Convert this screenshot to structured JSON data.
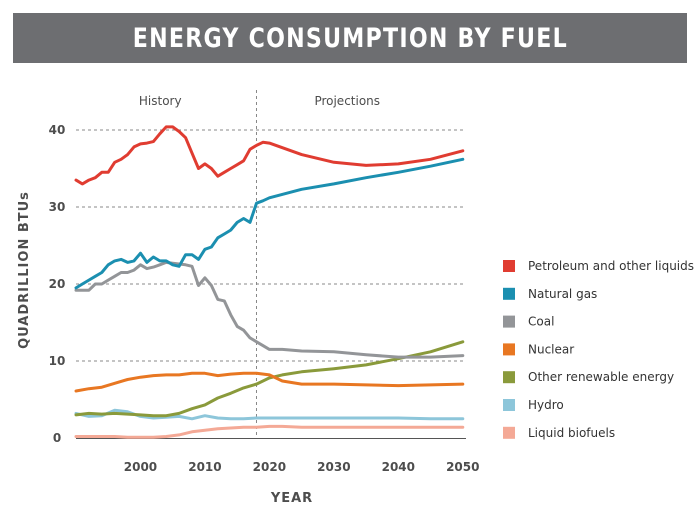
{
  "banner": {
    "title": "ENERGY CONSUMPTION BY FUEL"
  },
  "chart_data": {
    "type": "line",
    "xlabel": "YEAR",
    "ylabel": "QUADRILLION BTUs",
    "xlim": [
      1990,
      2050
    ],
    "ylim": [
      0,
      40
    ],
    "x_ticks": [
      2000,
      2010,
      2020,
      2030,
      2040,
      2050
    ],
    "y_ticks": [
      0,
      10,
      20,
      30,
      40
    ],
    "grid": "horizontal dashed",
    "divider_year": 2018,
    "regions": [
      "History",
      "Projections"
    ],
    "legend_position": "right",
    "series": [
      {
        "name": "Petroleum and other liquids",
        "color": "#e03c31",
        "x": [
          1990,
          1991,
          1992,
          1993,
          1994,
          1995,
          1996,
          1997,
          1998,
          1999,
          2000,
          2001,
          2002,
          2003,
          2004,
          2005,
          2006,
          2007,
          2008,
          2009,
          2010,
          2011,
          2012,
          2013,
          2014,
          2015,
          2016,
          2017,
          2018,
          2019,
          2020,
          2025,
          2030,
          2035,
          2040,
          2045,
          2050
        ],
        "y": [
          33.5,
          33,
          33.5,
          33.8,
          34.5,
          34.5,
          35.8,
          36.2,
          36.8,
          37.8,
          38.2,
          38.3,
          38.5,
          39.5,
          40.4,
          40.4,
          39.8,
          39,
          37,
          35,
          35.6,
          35,
          34,
          34.5,
          35,
          35.5,
          36,
          37.5,
          38,
          38.4,
          38.3,
          36.8,
          35.8,
          35.4,
          35.6,
          36.2,
          37.3
        ]
      },
      {
        "name": "Natural gas",
        "color": "#1b8fb0",
        "x": [
          1990,
          1991,
          1992,
          1993,
          1994,
          1995,
          1996,
          1997,
          1998,
          1999,
          2000,
          2001,
          2002,
          2003,
          2004,
          2005,
          2006,
          2007,
          2008,
          2009,
          2010,
          2011,
          2012,
          2013,
          2014,
          2015,
          2016,
          2017,
          2018,
          2019,
          2020,
          2025,
          2030,
          2035,
          2040,
          2045,
          2050
        ],
        "y": [
          19.5,
          20,
          20.5,
          21,
          21.5,
          22.5,
          23,
          23.2,
          22.8,
          23,
          24,
          22.8,
          23.5,
          23,
          23,
          22.5,
          22.3,
          23.8,
          23.8,
          23.2,
          24.5,
          24.8,
          26,
          26.5,
          27,
          28,
          28.5,
          28,
          30.5,
          30.8,
          31.2,
          32.3,
          33,
          33.8,
          34.5,
          35.3,
          36.2
        ]
      },
      {
        "name": "Coal",
        "color": "#939598",
        "x": [
          1990,
          1991,
          1992,
          1993,
          1994,
          1995,
          1996,
          1997,
          1998,
          1999,
          2000,
          2001,
          2002,
          2003,
          2004,
          2005,
          2006,
          2007,
          2008,
          2009,
          2010,
          2011,
          2012,
          2013,
          2014,
          2015,
          2016,
          2017,
          2018,
          2019,
          2020,
          2022,
          2025,
          2030,
          2035,
          2040,
          2045,
          2050
        ],
        "y": [
          19.2,
          19.2,
          19.2,
          20,
          20,
          20.5,
          21,
          21.5,
          21.5,
          21.8,
          22.5,
          22,
          22.2,
          22.5,
          22.8,
          22.7,
          22.6,
          22.5,
          22.3,
          19.8,
          20.8,
          19.8,
          18,
          17.8,
          16,
          14.5,
          14,
          13,
          12.5,
          12,
          11.5,
          11.5,
          11.3,
          11.2,
          10.8,
          10.5,
          10.5,
          10.7
        ]
      },
      {
        "name": "Nuclear",
        "color": "#e87722",
        "x": [
          1990,
          1992,
          1994,
          1996,
          1998,
          2000,
          2002,
          2004,
          2006,
          2008,
          2010,
          2012,
          2014,
          2016,
          2018,
          2020,
          2022,
          2025,
          2030,
          2035,
          2040,
          2045,
          2050
        ],
        "y": [
          6.1,
          6.4,
          6.6,
          7.1,
          7.6,
          7.9,
          8.1,
          8.2,
          8.2,
          8.4,
          8.4,
          8.1,
          8.3,
          8.4,
          8.4,
          8.2,
          7.4,
          7,
          7,
          6.9,
          6.8,
          6.9,
          7
        ]
      },
      {
        "name": "Other renewable energy",
        "color": "#8a9a3b",
        "x": [
          1990,
          1992,
          1994,
          1996,
          1998,
          2000,
          2002,
          2004,
          2006,
          2008,
          2010,
          2012,
          2014,
          2016,
          2018,
          2020,
          2022,
          2025,
          2030,
          2035,
          2040,
          2045,
          2050
        ],
        "y": [
          3,
          3.2,
          3.1,
          3.2,
          3.1,
          3,
          2.9,
          2.9,
          3.2,
          3.8,
          4.3,
          5.2,
          5.8,
          6.5,
          7,
          7.8,
          8.2,
          8.6,
          9,
          9.5,
          10.3,
          11.2,
          12.5
        ]
      },
      {
        "name": "Hydro",
        "color": "#8dc6da",
        "x": [
          1990,
          1992,
          1994,
          1996,
          1998,
          2000,
          2002,
          2004,
          2006,
          2008,
          2010,
          2012,
          2014,
          2016,
          2018,
          2020,
          2022,
          2025,
          2030,
          2035,
          2040,
          2045,
          2050
        ],
        "y": [
          3.2,
          2.8,
          2.9,
          3.6,
          3.4,
          2.8,
          2.6,
          2.7,
          2.8,
          2.5,
          2.9,
          2.6,
          2.5,
          2.5,
          2.6,
          2.6,
          2.6,
          2.6,
          2.6,
          2.6,
          2.6,
          2.5,
          2.5
        ]
      },
      {
        "name": "Liquid biofuels",
        "color": "#f4a996",
        "x": [
          1990,
          1992,
          1994,
          1996,
          1998,
          2000,
          2002,
          2004,
          2006,
          2008,
          2010,
          2012,
          2014,
          2016,
          2018,
          2020,
          2022,
          2025,
          2030,
          2035,
          2040,
          2045,
          2050
        ],
        "y": [
          0.2,
          0.2,
          0.2,
          0.2,
          0.1,
          0.1,
          0.1,
          0.2,
          0.4,
          0.8,
          1,
          1.2,
          1.3,
          1.4,
          1.4,
          1.5,
          1.5,
          1.4,
          1.4,
          1.4,
          1.4,
          1.4,
          1.4
        ]
      }
    ]
  }
}
